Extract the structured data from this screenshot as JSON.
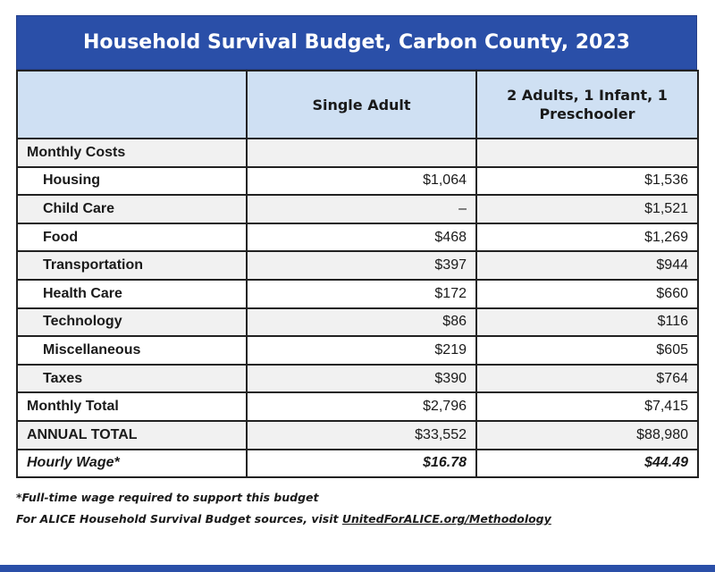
{
  "title": "Household Survival Budget, Carbon County, 2023",
  "columns": [
    "",
    "Single Adult",
    "2 Adults, 1 Infant, 1 Preschooler"
  ],
  "section_header": "Monthly Costs",
  "cost_rows": [
    {
      "label": "Housing",
      "single": "$1,064",
      "family": "$1,536"
    },
    {
      "label": "Child Care",
      "single": "–",
      "family": "$1,521"
    },
    {
      "label": "Food",
      "single": "$468",
      "family": "$1,269"
    },
    {
      "label": "Transportation",
      "single": "$397",
      "family": "$944"
    },
    {
      "label": "Health Care",
      "single": "$172",
      "family": "$660"
    },
    {
      "label": "Technology",
      "single": "$86",
      "family": "$116"
    },
    {
      "label": "Miscellaneous",
      "single": "$219",
      "family": "$605"
    },
    {
      "label": "Taxes",
      "single": "$390",
      "family": "$764"
    }
  ],
  "monthly_total": {
    "label": "Monthly Total",
    "single": "$2,796",
    "family": "$7,415"
  },
  "annual_total": {
    "label": "ANNUAL TOTAL",
    "single": "$33,552",
    "family": "$88,980"
  },
  "hourly_wage": {
    "label": "Hourly Wage*",
    "single": "$16.78",
    "family": "$44.49"
  },
  "footnote": "*Full-time wage required to support this budget",
  "sources_prefix": "For ALICE Household Survival Budget sources, visit ",
  "sources_link": "UnitedForALICE.org/Methodology",
  "colors": {
    "title_bg": "#2a4fa8",
    "header_bg": "#cfe0f3",
    "stripe": "#f1f1f1"
  }
}
